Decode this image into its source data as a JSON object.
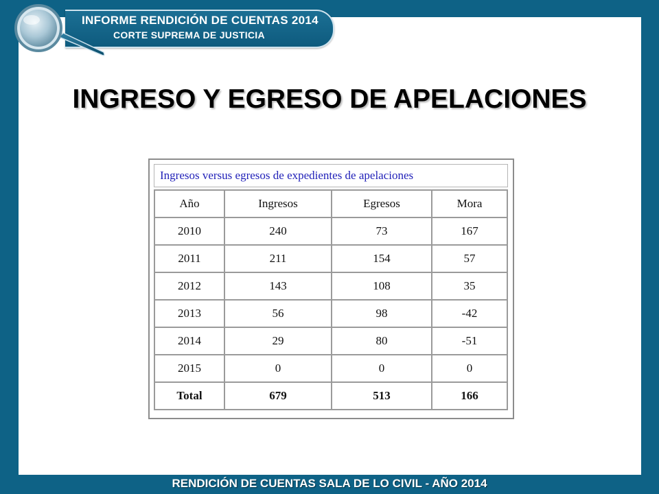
{
  "header": {
    "line1": "INFORME RENDICIÓN DE CUENTAS 2014",
    "line2": "CORTE SUPREMA DE JUSTICIA"
  },
  "title": "INGRESO Y EGRESO DE APELACIONES",
  "table": {
    "caption": "Ingresos versus egresos de expedientes de apelaciones",
    "headers": [
      "Año",
      "Ingresos",
      "Egresos",
      "Mora"
    ],
    "rows": [
      [
        "2010",
        "240",
        "73",
        "167"
      ],
      [
        "2011",
        "211",
        "154",
        "57"
      ],
      [
        "2012",
        "143",
        "108",
        "35"
      ],
      [
        "2013",
        "56",
        "98",
        "-42"
      ],
      [
        "2014",
        "29",
        "80",
        "-51"
      ],
      [
        "2015",
        "0",
        "0",
        "0"
      ]
    ],
    "total": [
      "Total",
      "679",
      "513",
      "166"
    ]
  },
  "footer": "RENDICIÓN DE CUENTAS SALA DE LO CIVIL - AÑO 2014",
  "colors": {
    "background": "#0e6286",
    "banner": "#1b6f94",
    "caption_text": "#1f1fb8"
  }
}
